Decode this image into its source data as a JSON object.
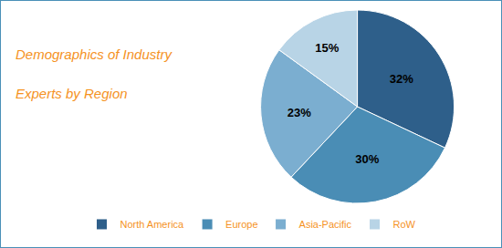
{
  "chart_data": {
    "type": "pie",
    "title": "Demographics of Industry",
    "subtitle": "Experts by Region",
    "categories": [
      "North America",
      "Europe",
      "Asia-Pacific",
      "RoW"
    ],
    "values": [
      32,
      30,
      23,
      15
    ],
    "value_labels": [
      "32%",
      "30%",
      "23%",
      "15%"
    ],
    "colors": [
      "#2E5F8A",
      "#4A8DB5",
      "#7BAED0",
      "#B8D4E6"
    ],
    "data_labels": true,
    "legend": "bottom"
  }
}
